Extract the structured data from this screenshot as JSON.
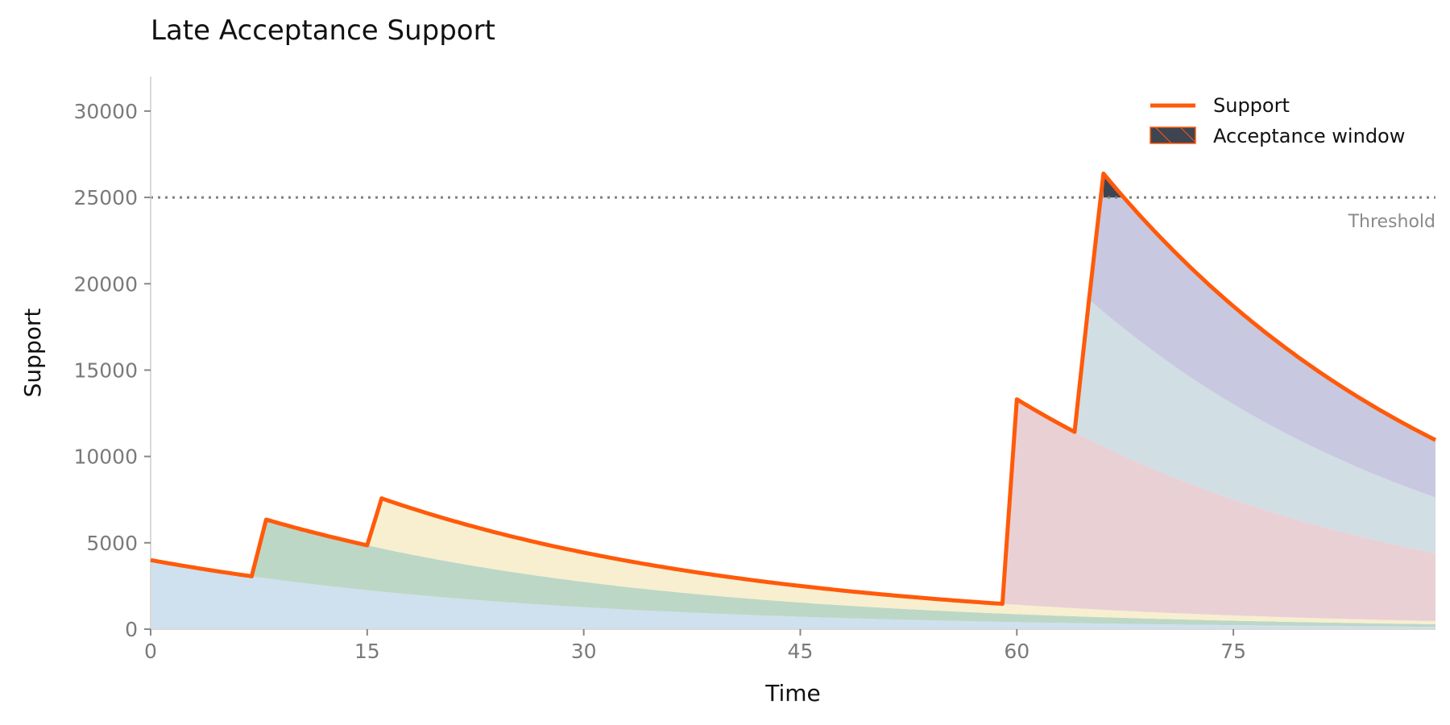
{
  "chart_data": {
    "type": "area",
    "title": "Late Acceptance Support",
    "xlabel": "Time",
    "ylabel": "Support",
    "xlim": [
      0,
      89
    ],
    "ylim": [
      0,
      32000
    ],
    "xticks": [
      0,
      15,
      30,
      45,
      60,
      75
    ],
    "yticks": [
      0,
      5000,
      10000,
      15000,
      20000,
      25000,
      30000
    ],
    "decay_per_unit": 0.9625,
    "events": [
      {
        "time": 0,
        "amount": 4000,
        "color": "#cfe0ee"
      },
      {
        "time": 8,
        "amount": 3400,
        "color": "#bdd7c6"
      },
      {
        "time": 16,
        "amount": 2900,
        "color": "#f7efd0"
      },
      {
        "time": 60,
        "amount": 11900,
        "color": "#e9d0d5"
      },
      {
        "time": 65,
        "amount": 8100,
        "color": "#d1dee4"
      },
      {
        "time": 66,
        "amount": 8000,
        "color": "#c8c8e0"
      }
    ],
    "series": [
      {
        "name": "Support",
        "color": "#ff5a0a"
      }
    ],
    "threshold": {
      "value": 25000,
      "label": "Threshold"
    },
    "acceptance_window": {
      "name": "Acceptance window",
      "fill": "#3f4451",
      "hatch": "#ff5a0a"
    },
    "legend": {
      "placement": "top-right"
    },
    "grid": false
  }
}
